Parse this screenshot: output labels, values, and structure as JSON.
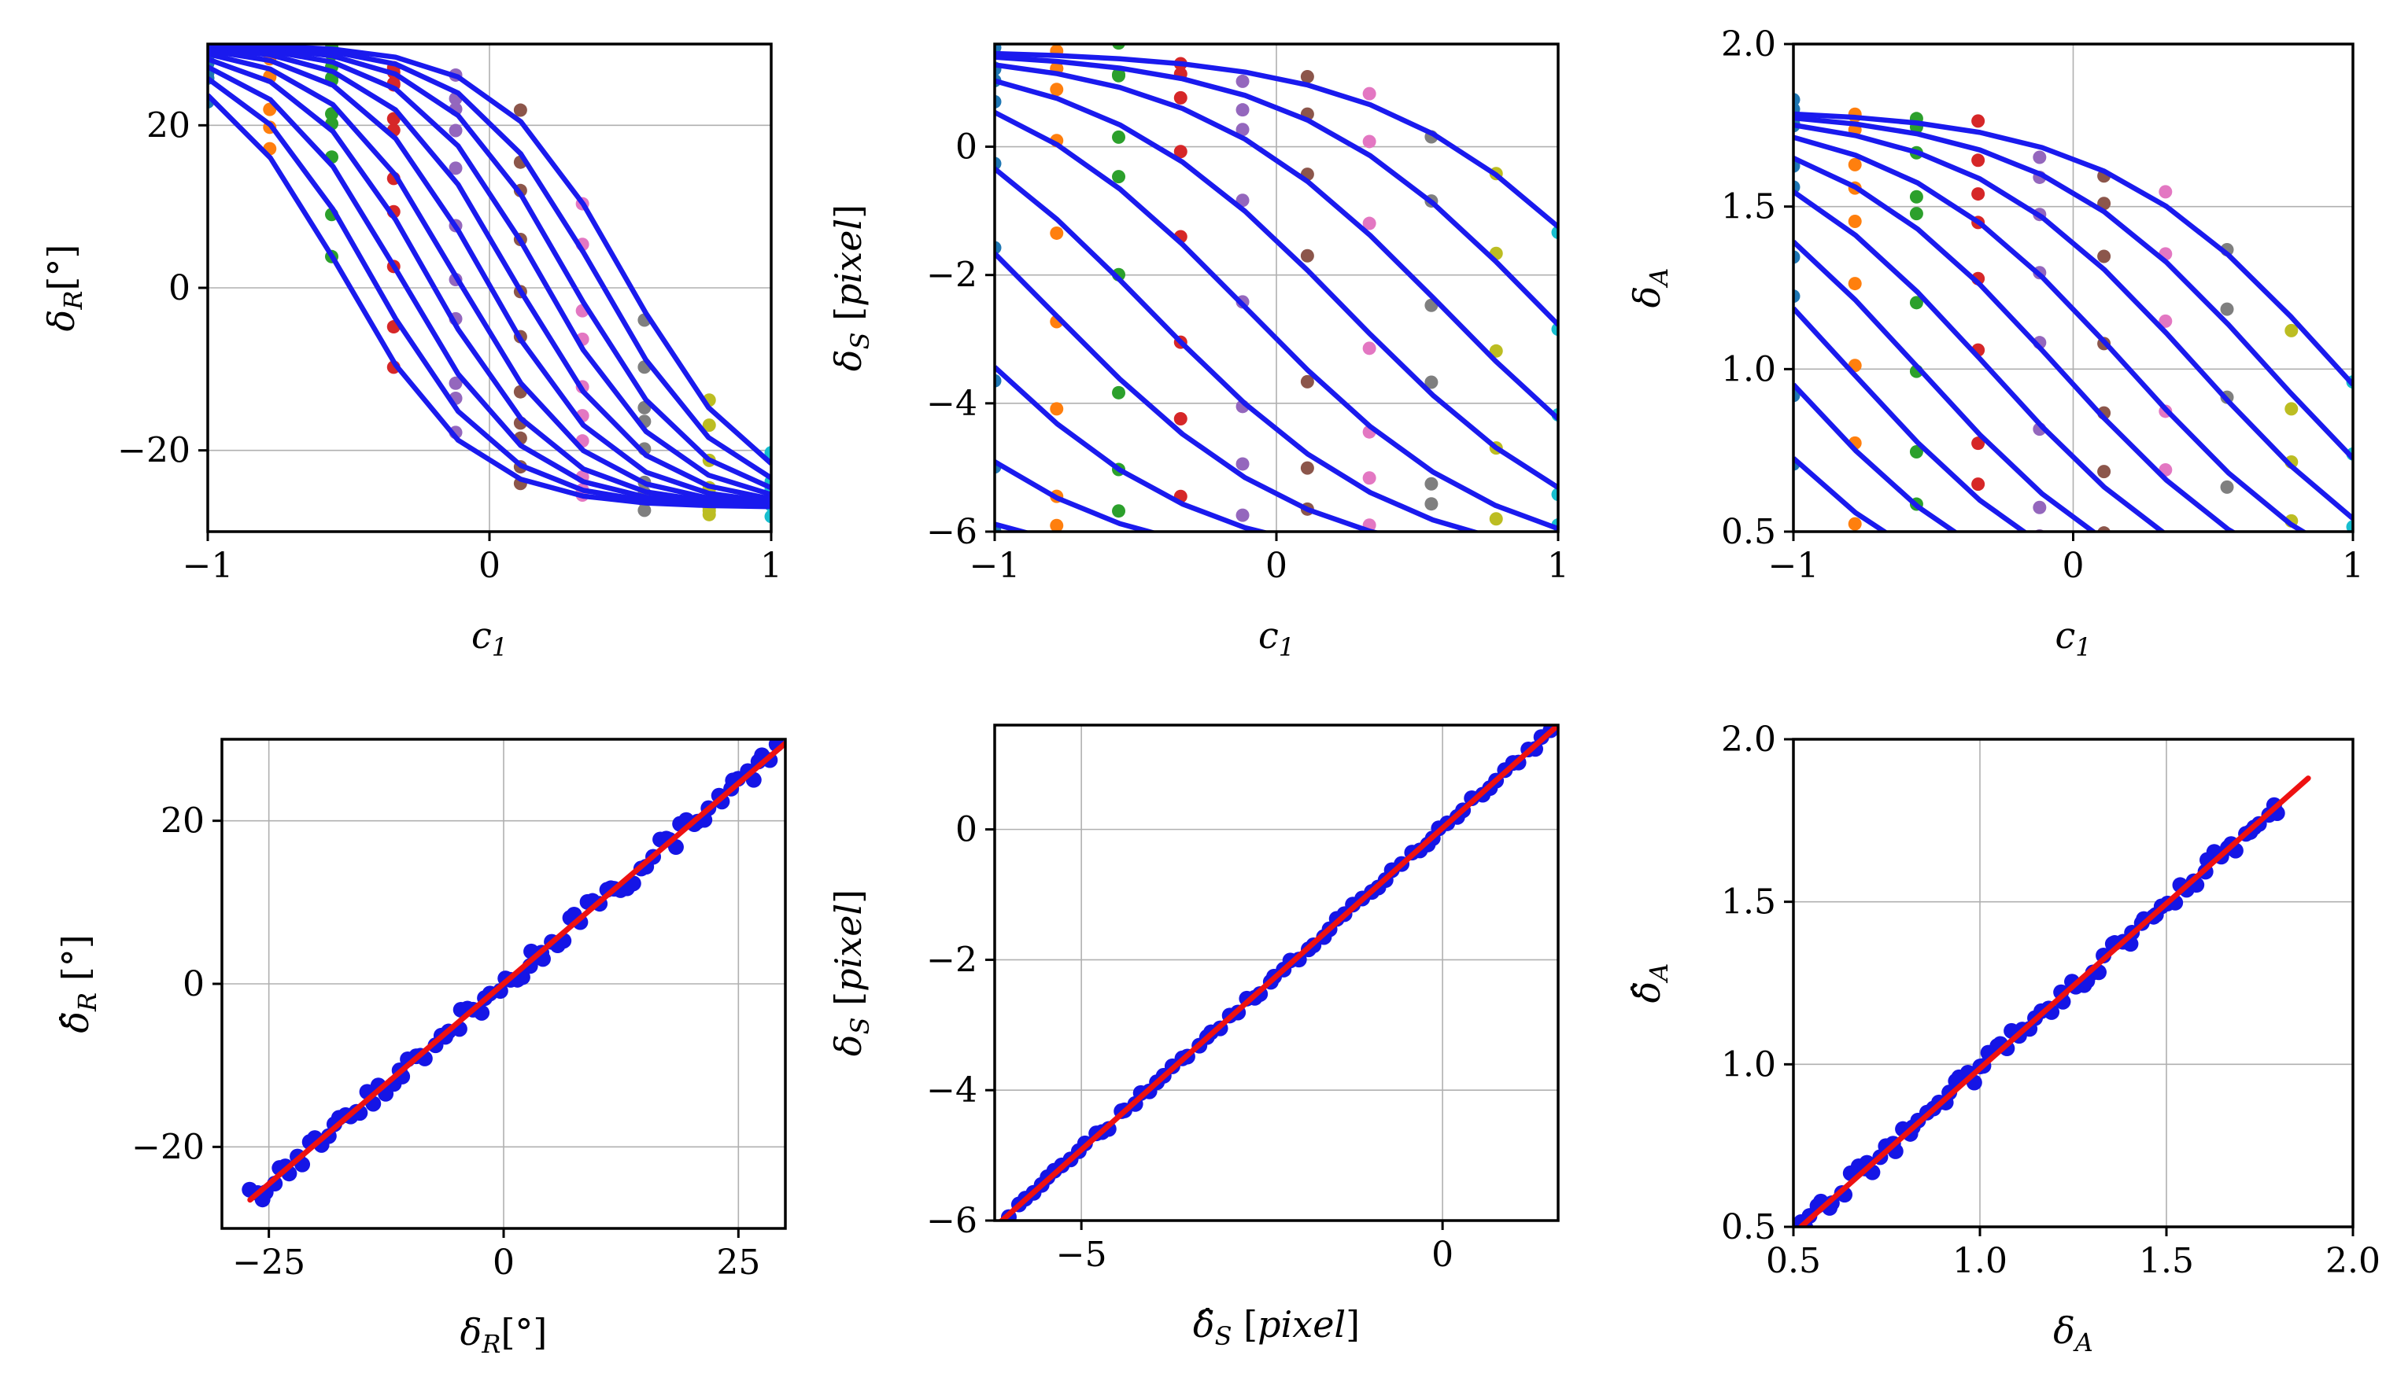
{
  "chart_data": [
    {
      "type": "line",
      "panel": "top-left",
      "xlabel": "c_1",
      "ylabel": "δ_R[°]",
      "xlim": [
        -1,
        1
      ],
      "ylim": [
        -30,
        30
      ],
      "xticks": [
        -1,
        0,
        1
      ],
      "xtick_labels": [
        "−1",
        "0",
        "1"
      ],
      "yticks": [
        -20,
        0,
        20
      ],
      "ytick_labels": [
        "−20",
        "0",
        "20"
      ],
      "grid": true,
      "curve_color": "#1a1aee",
      "curve_model": {
        "family": "sigmoid",
        "high": 30,
        "low": -27,
        "scale": 0.23,
        "midpoints": [
          -0.52,
          -0.42,
          -0.32,
          -0.22,
          -0.12,
          -0.02,
          0.08,
          0.18,
          0.28,
          0.38,
          0.48
        ]
      },
      "scatter_colors": [
        "#1f77b4",
        "#ff7f0e",
        "#2ca02c",
        "#d62728",
        "#9467bd",
        "#8c564b",
        "#e377c2",
        "#7f7f7f",
        "#bcbd22",
        "#17becf"
      ],
      "scatter_x": [
        -1,
        -0.78,
        -0.56,
        -0.34,
        -0.12,
        0.11,
        0.33,
        0.55,
        0.78,
        1
      ],
      "scatter_noise": 1.6
    },
    {
      "type": "line",
      "panel": "top-middle",
      "xlabel": "c_1",
      "ylabel": "δ_S [pixel]",
      "xlim": [
        -1,
        1
      ],
      "ylim": [
        -6,
        1.6
      ],
      "xticks": [
        -1,
        0,
        1
      ],
      "xtick_labels": [
        "−1",
        "0",
        "1"
      ],
      "yticks": [
        -6,
        -4,
        -2,
        0
      ],
      "ytick_labels": [
        "−6",
        "−4",
        "−2",
        "0"
      ],
      "grid": true,
      "curve_color": "#1a1aee",
      "curve_model": {
        "family": "sigmoid",
        "high": 1.5,
        "low": -6.6,
        "scale": 0.45,
        "midpoints": [
          -2.05,
          -1.6,
          -1.2,
          -0.8,
          -0.45,
          -0.1,
          0.25,
          0.6,
          0.95,
          1.3
        ]
      },
      "scatter_colors": [
        "#1f77b4",
        "#ff7f0e",
        "#2ca02c",
        "#d62728",
        "#9467bd",
        "#8c564b",
        "#e377c2",
        "#7f7f7f",
        "#bcbd22",
        "#17becf"
      ],
      "scatter_x": [
        -1,
        -0.78,
        -0.56,
        -0.34,
        -0.12,
        0.11,
        0.33,
        0.55,
        0.78,
        1
      ],
      "scatter_noise": 0.25
    },
    {
      "type": "line",
      "panel": "top-right",
      "xlabel": "c_1",
      "ylabel": "δ_A",
      "xlim": [
        -1,
        1
      ],
      "ylim": [
        0.5,
        2.0
      ],
      "xticks": [
        -1,
        0,
        1
      ],
      "xtick_labels": [
        "−1",
        "0",
        "1"
      ],
      "yticks": [
        0.5,
        1.0,
        1.5,
        2.0
      ],
      "ytick_labels": [
        "0.5",
        "1.0",
        "1.5",
        "2.0"
      ],
      "grid": true,
      "curve_color": "#1a1aee",
      "curve_model": {
        "family": "sigmoid",
        "high": 1.8,
        "low": 0.2,
        "scale": 0.42,
        "midpoints": [
          -1.3,
          -1.05,
          -0.8,
          -0.55,
          -0.3,
          -0.05,
          0.2,
          0.45,
          0.7,
          0.95
        ]
      },
      "scatter_colors": [
        "#1f77b4",
        "#ff7f0e",
        "#2ca02c",
        "#d62728",
        "#9467bd",
        "#8c564b",
        "#e377c2",
        "#7f7f7f",
        "#bcbd22",
        "#17becf"
      ],
      "scatter_x": [
        -1,
        -0.78,
        -0.56,
        -0.34,
        -0.12,
        0.11,
        0.33,
        0.55,
        0.78,
        1
      ],
      "scatter_noise": 0.05
    },
    {
      "type": "scatter",
      "panel": "bottom-left",
      "xlabel": "δ_R[°]",
      "ylabel": "δ̂_R [°]",
      "xlim": [
        -30,
        30
      ],
      "ylim": [
        -30,
        30
      ],
      "xticks": [
        -25,
        0,
        25
      ],
      "xtick_labels": [
        "−25",
        "0",
        "25"
      ],
      "yticks": [
        -20,
        0,
        20
      ],
      "ytick_labels": [
        "−20",
        "0",
        "20"
      ],
      "grid": true,
      "point_color": "#1515e6",
      "fit_color": "#ee1111",
      "fit_line": {
        "x": [
          -27,
          30
        ],
        "y": [
          -26.5,
          29.5
        ]
      },
      "points": {
        "x_range": [
          -27,
          29
        ],
        "count": 90,
        "noise": 1.3
      }
    },
    {
      "type": "scatter",
      "panel": "bottom-middle",
      "xlabel": "δ̂_S [pixel]",
      "ylabel": "δ_S [pixel]",
      "xlim": [
        -6.2,
        1.6
      ],
      "ylim": [
        -6,
        1.6
      ],
      "xticks": [
        -5,
        0
      ],
      "xtick_labels": [
        "−5",
        "0"
      ],
      "yticks": [
        -6,
        -4,
        -2,
        0
      ],
      "ytick_labels": [
        "−6",
        "−4",
        "−2",
        "0"
      ],
      "grid": true,
      "point_color": "#1515e6",
      "fit_color": "#ee1111",
      "fit_line": {
        "x": [
          -6.2,
          1.6
        ],
        "y": [
          -6.1,
          1.6
        ]
      },
      "points": {
        "x_range": [
          -6.0,
          1.5
        ],
        "count": 70,
        "noise": 0.06
      }
    },
    {
      "type": "scatter",
      "panel": "bottom-right",
      "xlabel": "δ_A",
      "ylabel": "δ̂_A",
      "xlim": [
        0.5,
        2.0
      ],
      "ylim": [
        0.5,
        2.0
      ],
      "xticks": [
        0.5,
        1.0,
        1.5,
        2.0
      ],
      "xtick_labels": [
        "0.5",
        "1.0",
        "1.5",
        "2.0"
      ],
      "yticks": [
        0.5,
        1.0,
        1.5,
        2.0
      ],
      "ytick_labels": [
        "0.5",
        "1.0",
        "1.5",
        "2.0"
      ],
      "grid": true,
      "point_color": "#1515e6",
      "fit_color": "#ee1111",
      "fit_line": {
        "x": [
          0.52,
          1.88
        ],
        "y": [
          0.5,
          1.88
        ]
      },
      "points": {
        "x_range": [
          0.5,
          1.8
        ],
        "count": 85,
        "noise": 0.03
      }
    }
  ]
}
